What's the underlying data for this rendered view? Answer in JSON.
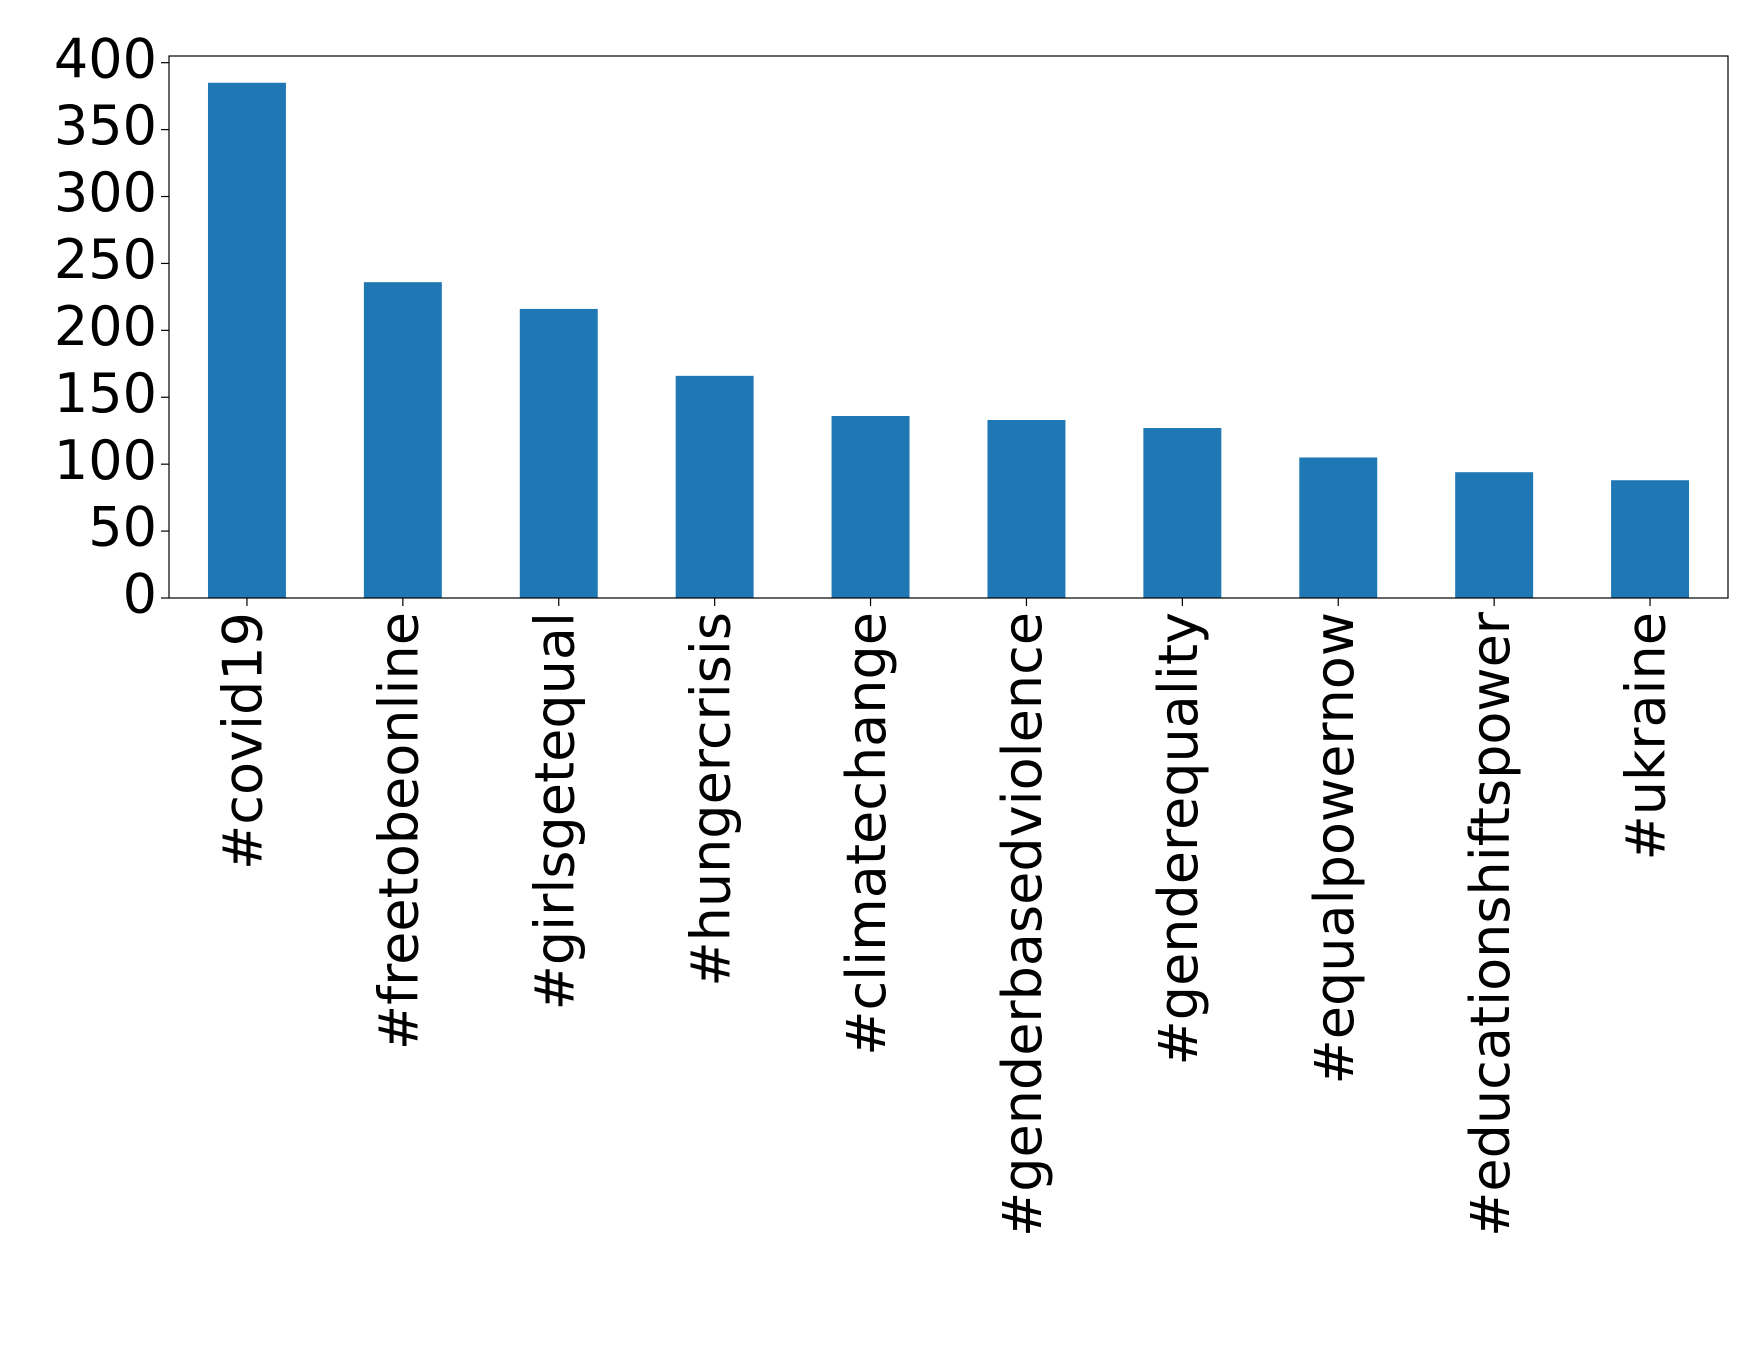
{
  "chart_data": {
    "type": "bar",
    "categories": [
      "#covid19",
      "#freetobeonline",
      "#girlsgetequal",
      "#hungercrisis",
      "#climatechange",
      "#genderbasedviolence",
      "#genderequality",
      "#equalpowernow",
      "#educationshiftspower",
      "#ukraine"
    ],
    "values": [
      385,
      236,
      216,
      166,
      136,
      133,
      127,
      105,
      94,
      88
    ],
    "color": "#1f77b4",
    "ylim": [
      0,
      405
    ],
    "yticks": [
      0,
      50,
      100,
      150,
      200,
      250,
      300,
      350,
      400
    ],
    "grid": false
  }
}
